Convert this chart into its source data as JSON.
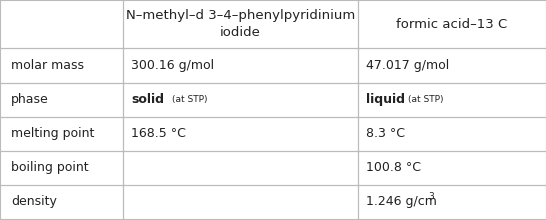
{
  "col_headers": [
    "N–methyl–d 3–4–phenylpyridinium\niodide",
    "formic acid–13 C"
  ],
  "row_headers": [
    "molar mass",
    "phase",
    "melting point",
    "boiling point",
    "density"
  ],
  "cells": [
    [
      "300.16 g/mol",
      "47.017 g/mol"
    ],
    [
      "solid_stp",
      "liquid_stp"
    ],
    [
      "168.5 °C",
      "8.3 °C"
    ],
    [
      "",
      "100.8 °C"
    ],
    [
      "",
      "1.246 g/cm³"
    ]
  ],
  "bg_color": "#ffffff",
  "border_color": "#bbbbbb",
  "header_bg": "#ffffff",
  "text_color": "#222222",
  "font_size": 9,
  "header_font_size": 9.5
}
